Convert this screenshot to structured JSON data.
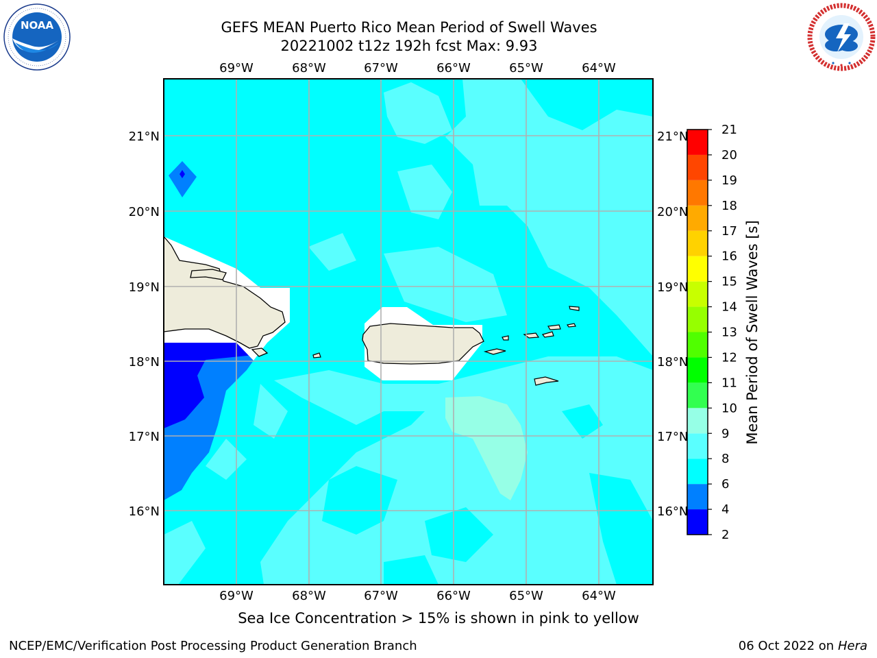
{
  "title": {
    "line1": "GEFS MEAN Puerto Rico Mean Period of Swell Waves",
    "line2": "20221002 t12z 192h fcst   Max: 9.93"
  },
  "logos": {
    "left": {
      "name": "noaa-logo",
      "text": "NOAA",
      "ring_text": "NATIONAL OCEANIC AND ATMOSPHERIC ADMINISTRATION · U.S. DEPARTMENT OF COMMERCE"
    },
    "right": {
      "name": "nws-logo",
      "ring_text": "NATIONAL WEATHER SERVICE"
    }
  },
  "map": {
    "lon_labels": [
      "69°W",
      "68°W",
      "67°W",
      "66°W",
      "65°W",
      "64°W"
    ],
    "lat_labels": [
      "21°N",
      "20°N",
      "19°N",
      "18°N",
      "17°N",
      "16°N"
    ],
    "land_color": "#eeecdb",
    "ocean_base_color": "#00ffff"
  },
  "colorbar": {
    "label": "Mean Period of Swell Waves [s]",
    "ticks": [
      "2",
      "4",
      "6",
      "8",
      "9",
      "10",
      "11",
      "12",
      "13",
      "14",
      "15",
      "16",
      "17",
      "18",
      "19",
      "20",
      "21"
    ],
    "colors": [
      "#0000ff",
      "#0080ff",
      "#00ffff",
      "#5affff",
      "#96ffe6",
      "#32ff50",
      "#00ff00",
      "#50ff00",
      "#96ff00",
      "#c8ff00",
      "#ffff00",
      "#ffd200",
      "#ffaa00",
      "#ff7800",
      "#ff4600",
      "#ff0000"
    ]
  },
  "caption": "Sea Ice Concentration > 15% is shown in pink to yellow",
  "footer": {
    "left": "NCEP/EMC/Verification Post Processing Product Generation Branch",
    "right_date": "06 Oct 2022 on ",
    "right_host": "Hera"
  }
}
